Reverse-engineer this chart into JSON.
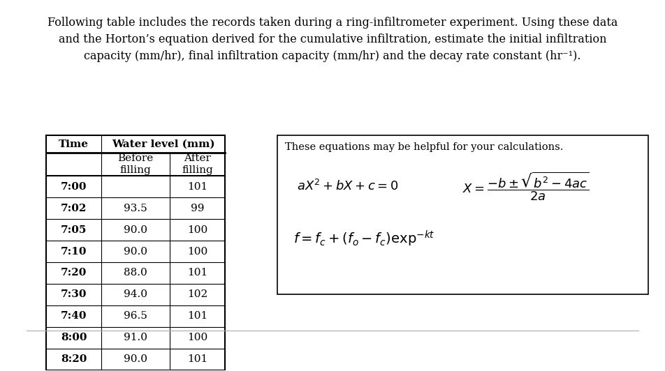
{
  "title_text": "Following table includes the records taken during a ring-infiltrometer experiment. Using these data\nand the Horton’s equation derived for the cumulative infiltration, estimate the initial infiltration\ncapacity (mm/hr), final infiltration capacity (mm/hr) and the decay rate constant (hr⁻¹).",
  "table_data": [
    [
      "7:00",
      "",
      "101"
    ],
    [
      "7:02",
      "93.5",
      "99"
    ],
    [
      "7:05",
      "90.0",
      "100"
    ],
    [
      "7:10",
      "90.0",
      "100"
    ],
    [
      "7:20",
      "88.0",
      "101"
    ],
    [
      "7:30",
      "94.0",
      "102"
    ],
    [
      "7:40",
      "96.5",
      "101"
    ],
    [
      "8:00",
      "91.0",
      "100"
    ],
    [
      "8:20",
      "90.0",
      "101"
    ]
  ],
  "eq_box_text": "These equations may be helpful for your calculations.",
  "bg_color": "#ffffff",
  "text_color": "#000000",
  "font_size_title": 11.5,
  "font_size_table": 11,
  "bottom_line_color": "#aaaaaa"
}
